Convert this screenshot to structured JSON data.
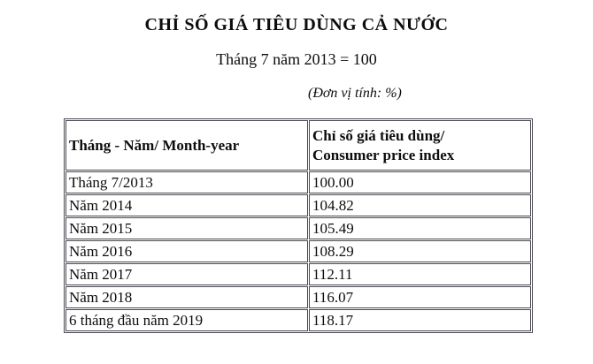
{
  "page": {
    "title": "CHỈ SỐ GIÁ TIÊU DÙNG CẢ NƯỚC",
    "subtitle": "Tháng 7 năm 2013 = 100",
    "unit_note": "(Đơn vị tính: %)"
  },
  "table": {
    "col1_header": "Tháng - Năm/ Month-year",
    "col2_header_line1": "Chỉ số giá tiêu dùng/",
    "col2_header_line2": "Consumer price index",
    "rows": [
      {
        "label": "Tháng 7/2013",
        "value": "100.00"
      },
      {
        "label": "Năm 2014",
        "value": "104.82"
      },
      {
        "label": "Năm 2015",
        "value": "105.49"
      },
      {
        "label": "Năm 2016",
        "value": "108.29"
      },
      {
        "label": "Năm 2017",
        "value": "112.11"
      },
      {
        "label": "Năm 2018",
        "value": "116.07"
      },
      {
        "label": "6 tháng đầu năm 2019",
        "value": "118.17"
      }
    ]
  },
  "chart_data": {
    "type": "table",
    "title": "CHỈ SỐ GIÁ TIÊU DÙNG CẢ NƯỚC (Tháng 7 năm 2013 = 100)",
    "unit": "%",
    "columns": [
      "Tháng - Năm/ Month-year",
      "Chỉ số giá tiêu dùng/ Consumer price index"
    ],
    "categories": [
      "Tháng 7/2013",
      "Năm 2014",
      "Năm 2015",
      "Năm 2016",
      "Năm 2017",
      "Năm 2018",
      "6 tháng đầu năm 2019"
    ],
    "values": [
      100.0,
      104.82,
      105.49,
      108.29,
      112.11,
      116.07,
      118.17
    ]
  }
}
